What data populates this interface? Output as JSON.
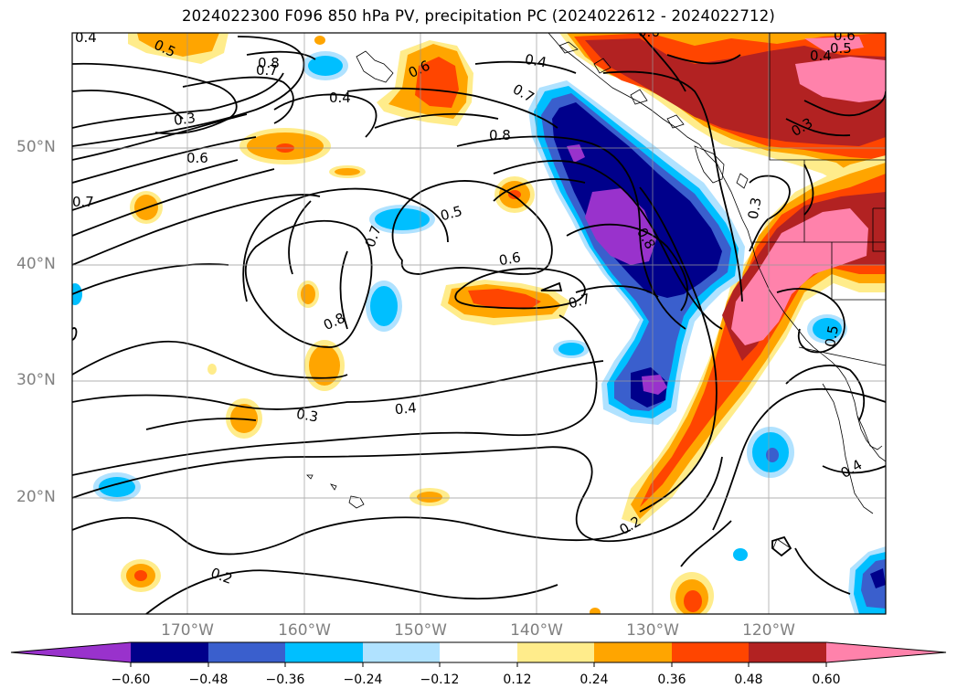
{
  "title": "2024022300 F096 850 hPa PV, precipitation PC (2024022612 - 2024022712)",
  "lat_labels": [
    "50°N",
    "40°N",
    "30°N",
    "20°N"
  ],
  "lon_labels": [
    "170°W",
    "160°W",
    "150°W",
    "140°W",
    "130°W",
    "120°W"
  ],
  "contour_labels": [
    "0.4",
    "0.5",
    "0.8",
    "0.7",
    "0.3",
    "0.6",
    "0.7",
    "0.6",
    "0.4",
    "0.7",
    "0.8",
    "0.6",
    "0.3",
    "0.4",
    "0.6",
    "0.5",
    "0.5",
    "0.7",
    "0.6",
    "0.7",
    "0.8",
    "0.8",
    "0.3",
    "0.4",
    "0.2",
    "0.2",
    "0.3",
    "0.4",
    "0.5",
    "0.4"
  ],
  "colorbar": {
    "ticks": [
      "−0.60",
      "−0.48",
      "−0.36",
      "−0.24",
      "−0.12",
      "0.12",
      "0.24",
      "0.36",
      "0.48",
      "0.60"
    ],
    "colors": [
      "#9932cc",
      "#00008b",
      "#3a5fcd",
      "#00bfff",
      "#b0e2ff",
      "#ffffff",
      "#ffec8b",
      "#ffa500",
      "#ff4500",
      "#b22222",
      "#ff82ab"
    ]
  },
  "colors": {
    "neg_060": "#9932cc",
    "neg_048": "#00008b",
    "neg_036": "#3a5fcd",
    "neg_024": "#00bfff",
    "neg_012": "#b0e2ff",
    "pos_012": "#ffec8b",
    "pos_024": "#ffa500",
    "pos_036": "#ff4500",
    "pos_048": "#b22222",
    "pos_060": "#ff82ab"
  }
}
